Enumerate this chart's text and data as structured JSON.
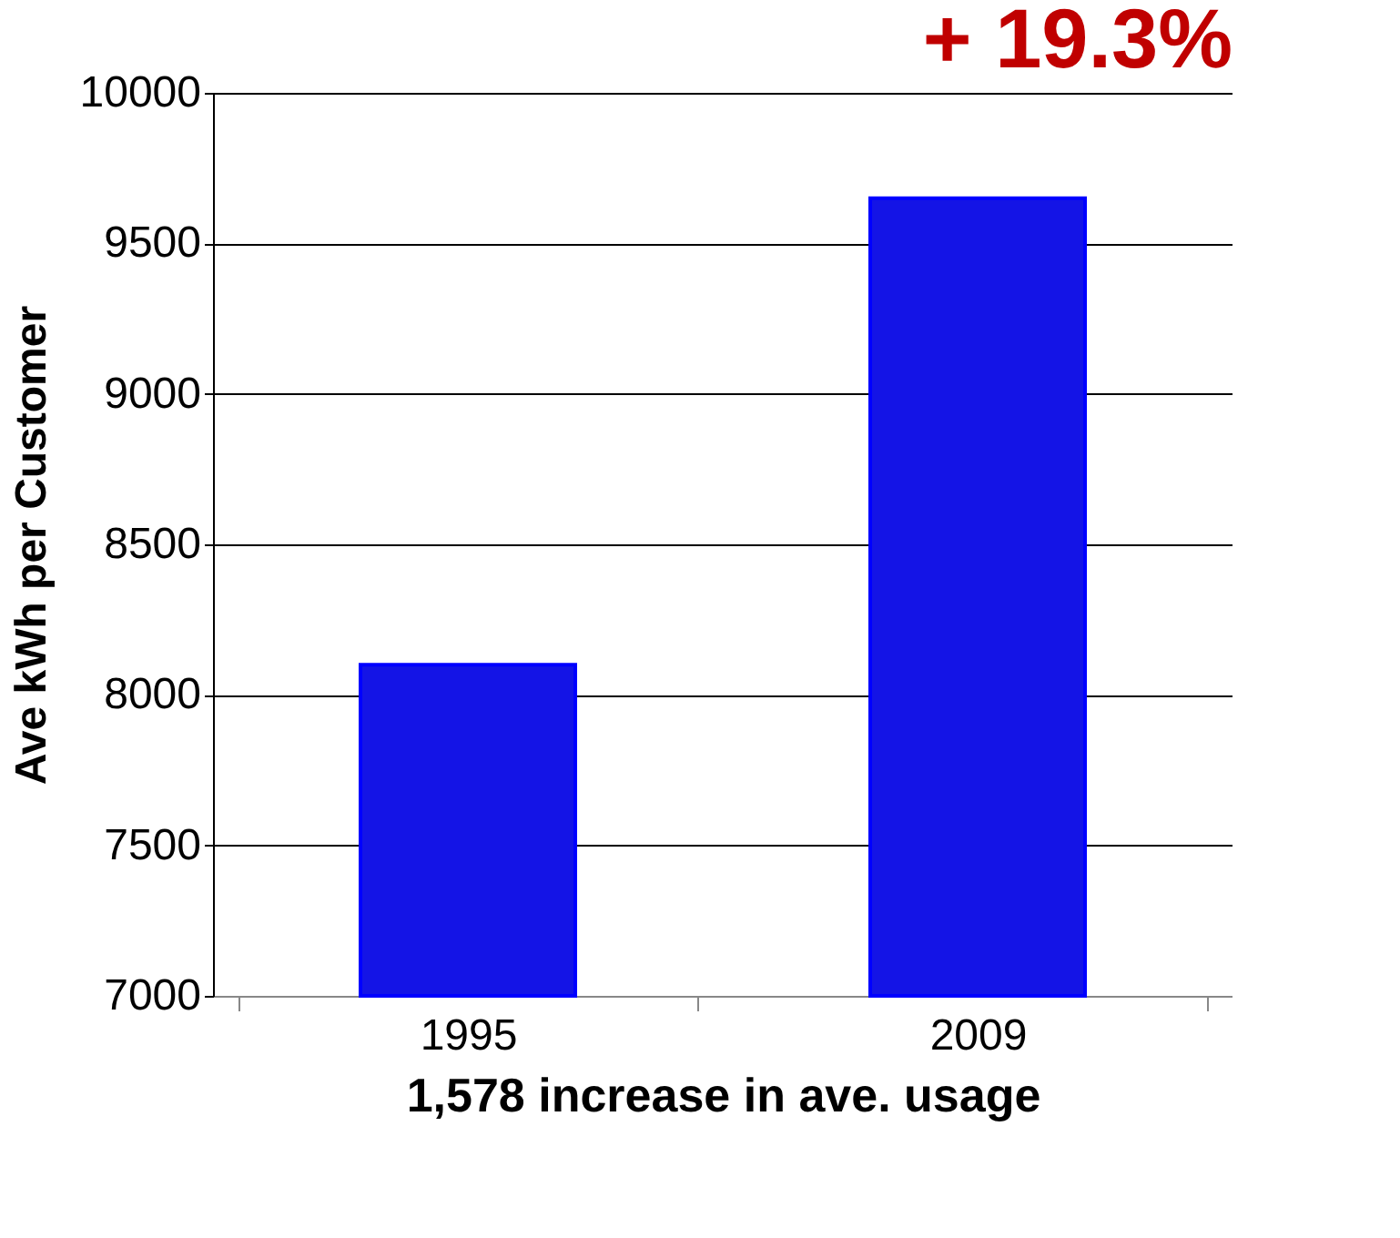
{
  "chart_data": {
    "type": "bar",
    "title": "+ 19.3%",
    "ylabel": "Ave kWh per Customer",
    "xlabel": "1,578 increase in ave. usage",
    "categories": [
      "1995",
      "2009"
    ],
    "values": [
      8100,
      9650
    ],
    "color": "#1414e6",
    "ylim": [
      7000,
      10000
    ],
    "yticks": [
      7000,
      7500,
      8000,
      8500,
      9000,
      9500,
      10000
    ],
    "grid": "y"
  }
}
